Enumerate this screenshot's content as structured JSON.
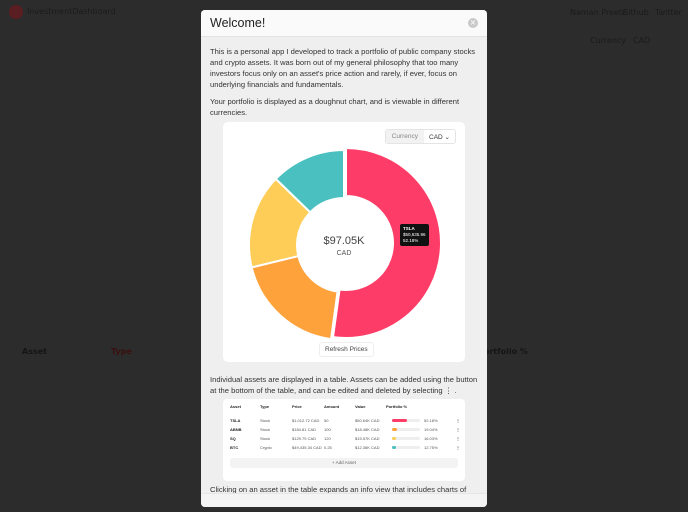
{
  "background": {
    "brand": "InvestmentDashboard",
    "nav": [
      "Naman Preetz",
      "Github",
      "Twitter"
    ],
    "currency_label": "Currency",
    "currency_value": "CAD",
    "table_headers": [
      "Asset",
      "Type",
      "Portfolio %"
    ]
  },
  "modal": {
    "title": "Welcome!",
    "paragraphs": [
      "This is a personal app I developed to track a portfolio of public company stocks and crypto assets. It was born out of my general philosophy that too many investors focus only on an asset's price action and rarely, if ever, focus on underlying financials and fundamentals.",
      "Your portfolio is displayed as a doughnut chart, and is viewable in different currencies.",
      "Individual assets are displayed in a table. Assets can be added using the button at the bottom of the table, and can be edited and deleted by selecting ⋮ .",
      "Clicking on an asset in the table expands an info view that includes charts of"
    ],
    "chart": {
      "currency_label": "Currency",
      "currency_value": "CAD",
      "total": "$97.05K",
      "total_currency": "CAD",
      "refresh_label": "Refresh Prices",
      "tooltip": {
        "asset": "TSLA",
        "value": "$50,635.96",
        "percent": "52.18%"
      },
      "chart_data": {
        "type": "pie",
        "categories": [
          "TSLA",
          "ABNB",
          "SQ",
          "BTC"
        ],
        "values": [
          52.18,
          19.04,
          16.03,
          12.75
        ],
        "colors": [
          "#fd3d67",
          "#fea23c",
          "#fecd57",
          "#4bc0c0"
        ]
      }
    },
    "table": {
      "headers": [
        "Asset",
        "Type",
        "Price",
        "Amount",
        "Value",
        "Portfolio %"
      ],
      "rows": [
        {
          "asset": "TSLA",
          "type": "Stock",
          "price": "$1,012.72 CAD",
          "amount": "50",
          "value": "$50.64K CAD",
          "pct": "52.18%",
          "frac": 0.5218,
          "color": "#fd3d67"
        },
        {
          "asset": "ABNB",
          "type": "Stock",
          "price": "$184.81 CAD",
          "amount": "100",
          "value": "$18.48K CAD",
          "pct": "19.04%",
          "frac": 0.1904,
          "color": "#fea23c"
        },
        {
          "asset": "SQ",
          "type": "Stock",
          "price": "$129.79 CAD",
          "amount": "120",
          "value": "$15.57K CAD",
          "pct": "16.03%",
          "frac": 0.1603,
          "color": "#fecd57"
        },
        {
          "asset": "BTC",
          "type": "Crypto",
          "price": "$49,435.34 CAD",
          "amount": "0.25",
          "value": "$12.36K CAD",
          "pct": "12.75%",
          "frac": 0.1275,
          "color": "#4bc0c0"
        }
      ],
      "add_label": "+ Add Asset"
    }
  }
}
